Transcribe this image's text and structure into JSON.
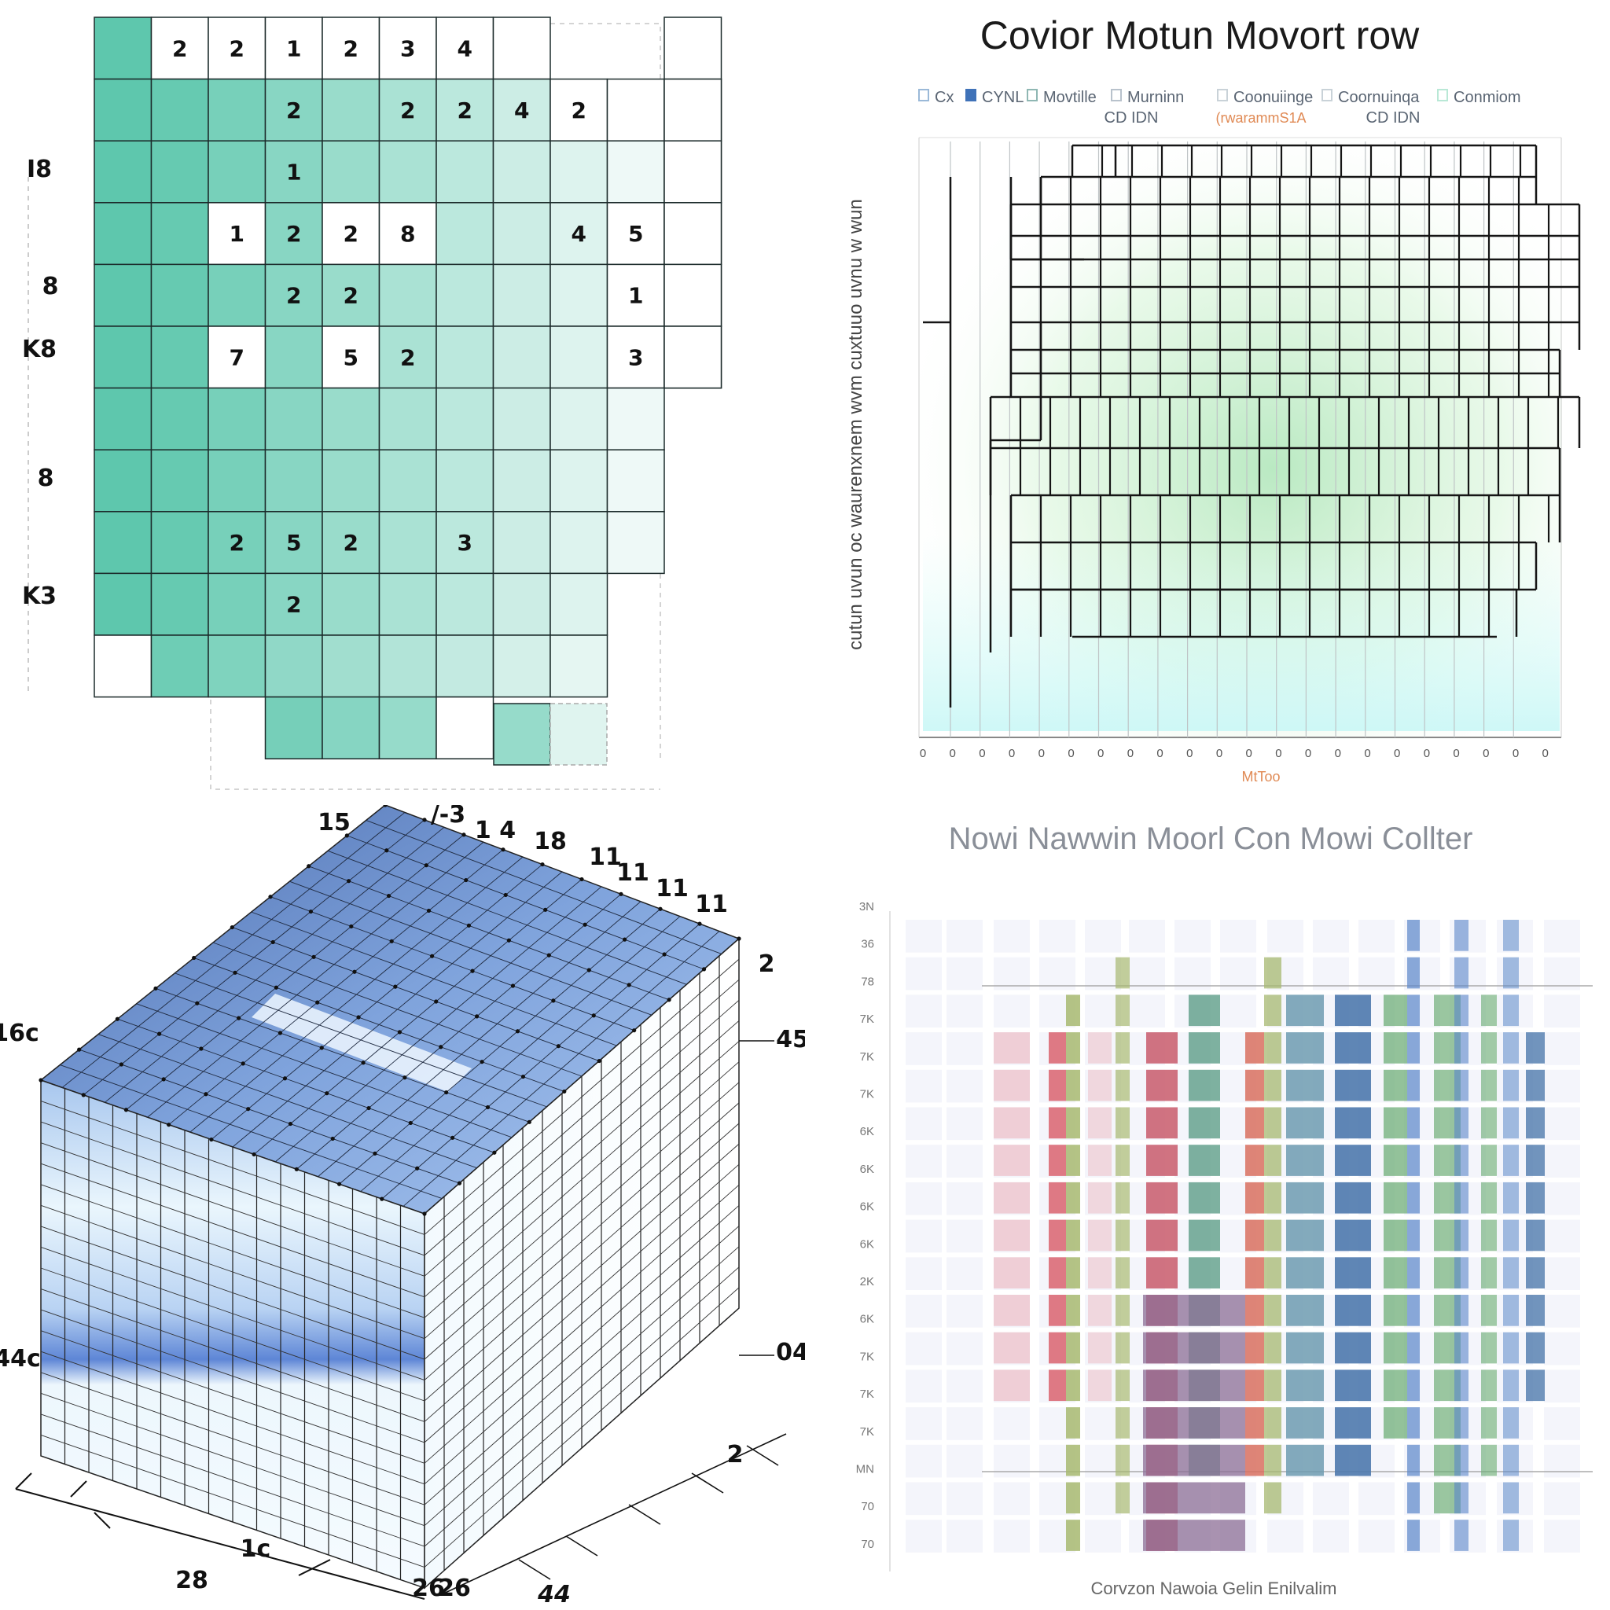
{
  "chart_data": [
    {
      "type": "heatmap",
      "row_labels": [
        "I8",
        "8",
        "K8",
        "8",
        "K3"
      ],
      "cell_numbers": [
        "2",
        "2",
        "1",
        "2",
        "3",
        "4",
        "2",
        "2",
        "2",
        "4",
        "2",
        "1",
        "1",
        "2",
        "2",
        "8",
        "4",
        "5",
        "2",
        "2",
        "1",
        "7",
        "5",
        "2",
        "3",
        "2",
        "5",
        "2",
        "3",
        "2"
      ],
      "colors": {
        "high": "#5ec7ad",
        "low": "#ffffff",
        "grid": "#1c2b2b"
      }
    },
    {
      "type": "line",
      "title": "Covior Motun Movort row",
      "legend": [
        {
          "name": "Cx",
          "color": "#9bb9d8"
        },
        {
          "name": "CYNL",
          "color": "#3f72b8"
        },
        {
          "name": "Movtille",
          "color": "#8fb7b3"
        },
        {
          "name": "Murninn",
          "color": "#b8c2cc"
        },
        {
          "name": "Coonuiinge",
          "color": "#c9d2d8"
        },
        {
          "name": "Coornuinqa",
          "color": "#c9d2d8"
        },
        {
          "name": "Conmiom",
          "color": "#b9e8d6"
        }
      ],
      "legend_sublabels": [
        "CD IDN",
        "(rwarammS1A",
        "CD IDN"
      ],
      "ylabel": "cutun uvun oc waurenxnem wvm cuxtuuo uvnu w wun",
      "xlabel": "MtToo",
      "xticks": [
        "0",
        "0",
        "0",
        "0",
        "0",
        "0",
        "0",
        "0",
        "0",
        "0",
        "0",
        "0",
        "0",
        "0",
        "0",
        "0",
        "0",
        "0",
        "0",
        "0",
        "0",
        "0"
      ]
    },
    {
      "type": "table",
      "labels": [
        "15",
        "/-3",
        "1 4",
        "18",
        "11",
        "11",
        "11",
        "11",
        "2",
        "45",
        "16c",
        "44c",
        "04",
        "2",
        "1c",
        "28",
        "26",
        "26",
        "44"
      ]
    },
    {
      "type": "heatmap",
      "title": "Nowi Nawwin Moorl Con Mowi Collter",
      "yticks": [
        "3N",
        "36",
        "78",
        "7K",
        "7K",
        "7K",
        "6K",
        "6K",
        "6K",
        "6K",
        "2K",
        "6K",
        "7K",
        "7K",
        "7K",
        "MN",
        "70",
        "70"
      ],
      "xlabel": "Corvzon Nawoia Gelin Enilvalim",
      "palette": [
        "#e8a0a8",
        "#d9636f",
        "#a7b870",
        "#c85a6b",
        "#5e9e88",
        "#d8705f",
        "#6d9bb0",
        "#4e79ad",
        "#6fae78",
        "#5a86c9",
        "#8c6d95"
      ]
    }
  ]
}
